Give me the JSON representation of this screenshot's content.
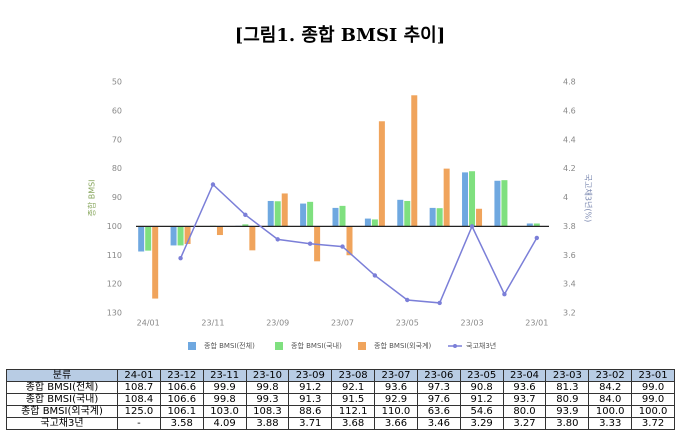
{
  "chart_data": {
    "type": "bar",
    "title": "[그림1. 종합 BMSI 추이]",
    "y_label": "종합 BMSI",
    "y2_label": "국고채3년(%)",
    "category_header": "분류",
    "categories": [
      "24-01",
      "23-12",
      "23-11",
      "23-10",
      "23-09",
      "23-08",
      "23-07",
      "23-06",
      "23-05",
      "23-04",
      "23-03",
      "23-02",
      "23-01"
    ],
    "x_labels": [
      "24/01",
      null,
      "23/11",
      null,
      "23/09",
      null,
      "23/07",
      null,
      "23/05",
      null,
      "23/03",
      null,
      "23/01"
    ],
    "ylim": [
      130,
      50
    ],
    "yticks": [
      50,
      60,
      70,
      80,
      90,
      100,
      110,
      120,
      130
    ],
    "y2lim": [
      3.2,
      4.8
    ],
    "y2ticks": [
      3.2,
      3.4,
      3.6,
      3.8,
      4,
      4.2,
      4.4,
      4.6,
      4.8
    ],
    "baseline": 100,
    "series": [
      {
        "name": "종합 BMSI(전체)",
        "color": "#6fa8e0",
        "values": [
          108.7,
          106.6,
          99.9,
          99.8,
          91.2,
          92.1,
          93.6,
          97.3,
          90.8,
          93.6,
          81.3,
          84.2,
          99.0
        ],
        "value_labels": [
          "108.7",
          "106.6",
          "99.9",
          "99.8",
          "91.2",
          "92.1",
          "93.6",
          "97.3",
          "90.8",
          "93.6",
          "81.3",
          "84.2",
          "99.0"
        ]
      },
      {
        "name": "종합 BMSI(국내)",
        "color": "#7fe07f",
        "values": [
          108.4,
          106.6,
          99.8,
          99.3,
          91.3,
          91.5,
          92.9,
          97.6,
          91.2,
          93.7,
          80.9,
          84.0,
          99.0
        ],
        "value_labels": [
          "108.4",
          "106.6",
          "99.8",
          "99.3",
          "91.3",
          "91.5",
          "92.9",
          "97.6",
          "91.2",
          "93.7",
          "80.9",
          "84.0",
          "99.0"
        ]
      },
      {
        "name": "종합 BMSI(외국계)",
        "color": "#f0a45c",
        "values": [
          125.0,
          106.1,
          103.0,
          108.3,
          88.6,
          112.1,
          110.0,
          63.6,
          54.6,
          80.0,
          93.9,
          100.0,
          100.0
        ],
        "value_labels": [
          "125.0",
          "106.1",
          "103.0",
          "108.3",
          "88.6",
          "112.1",
          "110.0",
          "63.6",
          "54.6",
          "80.0",
          "93.9",
          "100.0",
          "100.0"
        ]
      },
      {
        "name": "국고채3년",
        "color": "#7b7fd8",
        "type": "line",
        "axis": "y2",
        "values": [
          null,
          3.58,
          4.09,
          3.88,
          3.71,
          3.68,
          3.66,
          3.46,
          3.29,
          3.27,
          3.8,
          3.33,
          3.72
        ],
        "value_labels": [
          "-",
          "3.58",
          "4.09",
          "3.88",
          "3.71",
          "3.68",
          "3.66",
          "3.46",
          "3.29",
          "3.27",
          "3.80",
          "3.33",
          "3.72"
        ]
      }
    ]
  }
}
